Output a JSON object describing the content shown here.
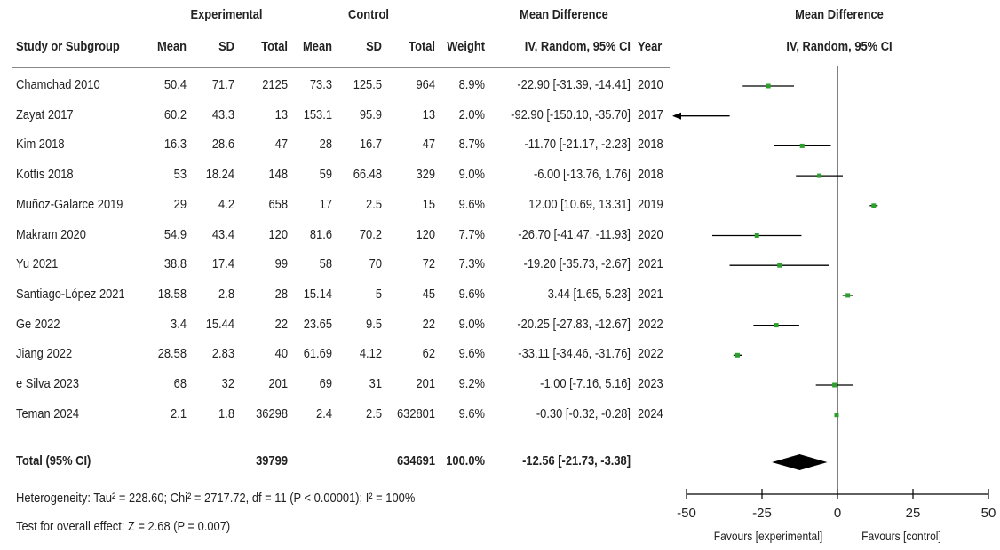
{
  "headers": {
    "group_experimental": "Experimental",
    "group_control": "Control",
    "group_md_left": "Mean Difference",
    "group_md_right": "Mean Difference",
    "study": "Study or Subgroup",
    "mean_e": "Mean",
    "sd_e": "SD",
    "total_e": "Total",
    "mean_c": "Mean",
    "sd_c": "SD",
    "total_c": "Total",
    "weight": "Weight",
    "ci": "IV, Random, 95% CI",
    "year": "Year",
    "ci_right": "IV, Random, 95% CI"
  },
  "rows": [
    {
      "study": "Chamchad 2010",
      "mean_e": "50.4",
      "sd_e": "71.7",
      "total_e": "2125",
      "mean_c": "73.3",
      "sd_c": "125.5",
      "total_c": "964",
      "weight": "8.9%",
      "ci": "-22.90 [-31.39, -14.41]",
      "year": "2010"
    },
    {
      "study": "Zayat 2017",
      "mean_e": "60.2",
      "sd_e": "43.3",
      "total_e": "13",
      "mean_c": "153.1",
      "sd_c": "95.9",
      "total_c": "13",
      "weight": "2.0%",
      "ci": "-92.90 [-150.10, -35.70]",
      "year": "2017"
    },
    {
      "study": "Kim 2018",
      "mean_e": "16.3",
      "sd_e": "28.6",
      "total_e": "47",
      "mean_c": "28",
      "sd_c": "16.7",
      "total_c": "47",
      "weight": "8.7%",
      "ci": "-11.70 [-21.17, -2.23]",
      "year": "2018"
    },
    {
      "study": "Kotfis 2018",
      "mean_e": "53",
      "sd_e": "18.24",
      "total_e": "148",
      "mean_c": "59",
      "sd_c": "66.48",
      "total_c": "329",
      "weight": "9.0%",
      "ci": "-6.00 [-13.76, 1.76]",
      "year": "2018"
    },
    {
      "study": "Muñoz-Galarce 2019",
      "mean_e": "29",
      "sd_e": "4.2",
      "total_e": "658",
      "mean_c": "17",
      "sd_c": "2.5",
      "total_c": "15",
      "weight": "9.6%",
      "ci": "12.00 [10.69, 13.31]",
      "year": "2019"
    },
    {
      "study": "Makram 2020",
      "mean_e": "54.9",
      "sd_e": "43.4",
      "total_e": "120",
      "mean_c": "81.6",
      "sd_c": "70.2",
      "total_c": "120",
      "weight": "7.7%",
      "ci": "-26.70 [-41.47, -11.93]",
      "year": "2020"
    },
    {
      "study": "Yu 2021",
      "mean_e": "38.8",
      "sd_e": "17.4",
      "total_e": "99",
      "mean_c": "58",
      "sd_c": "70",
      "total_c": "72",
      "weight": "7.3%",
      "ci": "-19.20 [-35.73, -2.67]",
      "year": "2021"
    },
    {
      "study": "Santiago-López 2021",
      "mean_e": "18.58",
      "sd_e": "2.8",
      "total_e": "28",
      "mean_c": "15.14",
      "sd_c": "5",
      "total_c": "45",
      "weight": "9.6%",
      "ci": "3.44 [1.65, 5.23]",
      "year": "2021"
    },
    {
      "study": "Ge 2022",
      "mean_e": "3.4",
      "sd_e": "15.44",
      "total_e": "22",
      "mean_c": "23.65",
      "sd_c": "9.5",
      "total_c": "22",
      "weight": "9.0%",
      "ci": "-20.25 [-27.83, -12.67]",
      "year": "2022"
    },
    {
      "study": "Jiang 2022",
      "mean_e": "28.58",
      "sd_e": "2.83",
      "total_e": "40",
      "mean_c": "61.69",
      "sd_c": "4.12",
      "total_c": "62",
      "weight": "9.6%",
      "ci": "-33.11 [-34.46, -31.76]",
      "year": "2022"
    },
    {
      "study": "e Silva 2023",
      "mean_e": "68",
      "sd_e": "32",
      "total_e": "201",
      "mean_c": "69",
      "sd_c": "31",
      "total_c": "201",
      "weight": "9.2%",
      "ci": "-1.00 [-7.16, 5.16]",
      "year": "2023"
    },
    {
      "study": "Teman 2024",
      "mean_e": "2.1",
      "sd_e": "1.8",
      "total_e": "36298",
      "mean_c": "2.4",
      "sd_c": "2.5",
      "total_c": "632801",
      "weight": "9.6%",
      "ci": "-0.30 [-0.32, -0.28]",
      "year": "2024"
    }
  ],
  "total": {
    "label": "Total (95% CI)",
    "total_e": "39799",
    "total_c": "634691",
    "weight": "100.0%",
    "ci": "-12.56 [-21.73, -3.38]"
  },
  "heterogeneity": "Heterogeneity: Tau² = 228.60; Chi² = 2717.72, df = 11 (P < 0.00001); I² = 100%",
  "overall_effect": "Test for overall effect: Z = 2.68 (P = 0.007)",
  "favours_left": "Favours [experimental]",
  "favours_right": "Favours [control]",
  "colors": {
    "marker": "#2ca02c",
    "line": "#000000",
    "axis": "#000000"
  },
  "chart_data": {
    "type": "forest",
    "xlim": [
      -50,
      50
    ],
    "ticks": [
      -50,
      -25,
      0,
      25,
      50
    ],
    "tick_labels": [
      "-50",
      "-25",
      "0",
      "25",
      "50"
    ],
    "studies": [
      {
        "name": "Chamchad 2010",
        "est": -22.9,
        "lo": -31.39,
        "hi": -14.41
      },
      {
        "name": "Zayat 2017",
        "est": -92.9,
        "lo": -150.1,
        "hi": -35.7
      },
      {
        "name": "Kim 2018",
        "est": -11.7,
        "lo": -21.17,
        "hi": -2.23
      },
      {
        "name": "Kotfis 2018",
        "est": -6.0,
        "lo": -13.76,
        "hi": 1.76
      },
      {
        "name": "Muñoz-Galarce 2019",
        "est": 12.0,
        "lo": 10.69,
        "hi": 13.31
      },
      {
        "name": "Makram 2020",
        "est": -26.7,
        "lo": -41.47,
        "hi": -11.93
      },
      {
        "name": "Yu 2021",
        "est": -19.2,
        "lo": -35.73,
        "hi": -2.67
      },
      {
        "name": "Santiago-López 2021",
        "est": 3.44,
        "lo": 1.65,
        "hi": 5.23
      },
      {
        "name": "Ge 2022",
        "est": -20.25,
        "lo": -27.83,
        "hi": -12.67
      },
      {
        "name": "Jiang 2022",
        "est": -33.11,
        "lo": -34.46,
        "hi": -31.76
      },
      {
        "name": "e Silva 2023",
        "est": -1.0,
        "lo": -7.16,
        "hi": 5.16
      },
      {
        "name": "Teman 2024",
        "est": -0.3,
        "lo": -0.32,
        "hi": -0.28
      }
    ],
    "pooled": {
      "est": -12.56,
      "lo": -21.73,
      "hi": -3.38
    }
  }
}
